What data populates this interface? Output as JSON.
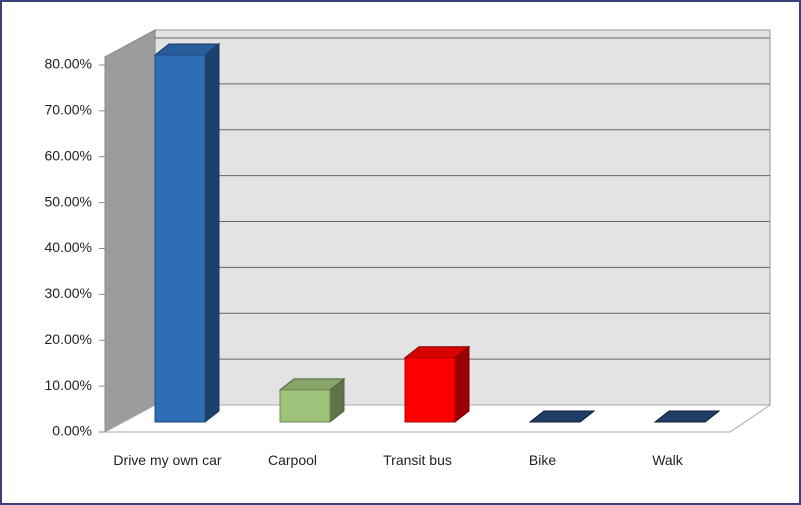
{
  "chart_data": {
    "type": "bar3d",
    "categories": [
      "Drive my own car",
      "Carpool",
      "Transit bus",
      "Bike",
      "Walk"
    ],
    "values": [
      80,
      7,
      14,
      0,
      0
    ],
    "colors": [
      "#2f6db6",
      "#9fc27a",
      "#ff0000",
      "#1f3d66",
      "#1f3d66"
    ],
    "ylim": [
      0,
      80
    ],
    "yticks": [
      {
        "value": 0,
        "label": "0.00%"
      },
      {
        "value": 10,
        "label": "10.00%"
      },
      {
        "value": 20,
        "label": "20.00%"
      },
      {
        "value": 30,
        "label": "30.00%"
      },
      {
        "value": 40,
        "label": "40.00%"
      },
      {
        "value": 50,
        "label": "50.00%"
      },
      {
        "value": 60,
        "label": "60.00%"
      },
      {
        "value": 70,
        "label": "70.00%"
      },
      {
        "value": 80,
        "label": "80.00%"
      }
    ],
    "grid": true
  }
}
